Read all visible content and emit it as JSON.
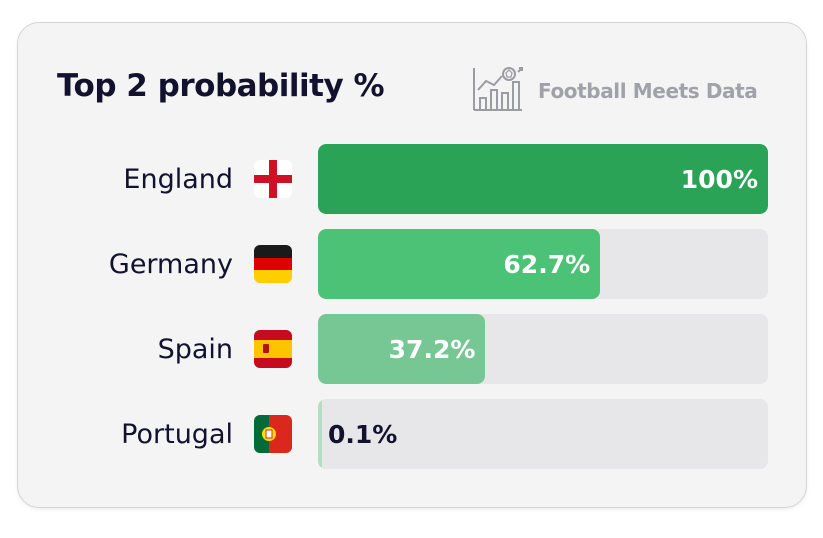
{
  "chart_data": {
    "type": "bar",
    "orientation": "horizontal",
    "title": "Top 2 probability %",
    "categories": [
      "England",
      "Germany",
      "Spain",
      "Portugal"
    ],
    "values": [
      100,
      62.7,
      37.2,
      0.1
    ],
    "value_labels": [
      "100%",
      "62.7%",
      "37.2%",
      "0.1%"
    ],
    "xlim": [
      0,
      100
    ],
    "bar_colors": [
      "#2ba357",
      "#4cc276",
      "#77c795",
      "#b5ddc4"
    ],
    "flags": [
      "england-flag",
      "germany-flag",
      "spain-flag",
      "portugal-flag"
    ]
  },
  "brand": {
    "name": "Football Meets Data",
    "icon": "chart-football-logo"
  },
  "colors": {
    "card": "#f4f4f5",
    "track": "#e7e7e9",
    "text": "#12122e",
    "brand": "#a1a1aa"
  }
}
